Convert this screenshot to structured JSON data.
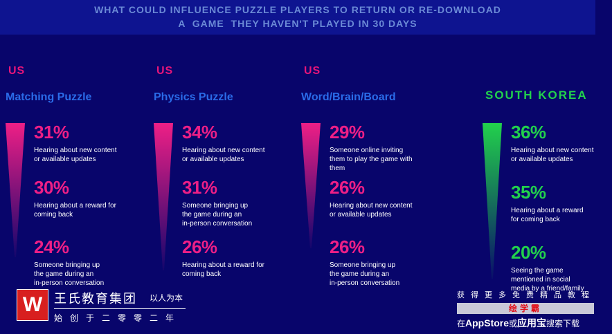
{
  "header": {
    "line1": "WHAT COULD INFLUENCE PUZZLE PLAYERS TO RETURN OR RE-DOWNLOAD",
    "line2": "A  GAME  THEY HAVEN'T PLAYED IN 30 DAYS"
  },
  "colors": {
    "accent_pink": "#ee1f86",
    "accent_green": "#22d14c",
    "genre_blue": "#2a6be8",
    "background": "#08056b"
  },
  "chart_data": [
    {
      "type": "bar",
      "region": "US",
      "genre": "Matching Puzzle",
      "categories": [
        "Hearing about new content or available updates",
        "Hearing about a reward for coming back",
        "Someone bringing up the game during an in-person conversation"
      ],
      "values": [
        31,
        30,
        24
      ],
      "labels": [
        "31%",
        "30%",
        "24%"
      ]
    },
    {
      "type": "bar",
      "region": "US",
      "genre": "Physics Puzzle",
      "categories": [
        "Hearing about new content or available updates",
        "Someone bringing up the game during an in-person conversation",
        "Hearing about a reward for coming back"
      ],
      "values": [
        34,
        31,
        26
      ],
      "labels": [
        "34%",
        "31%",
        "26%"
      ]
    },
    {
      "type": "bar",
      "region": "US",
      "genre": "Word/Brain/Board",
      "categories": [
        "Someone online inviting them to play the game with them",
        "Hearing about new content or available updates",
        "Someone bringing up the game during an in-person conversation"
      ],
      "values": [
        29,
        26,
        26
      ],
      "labels": [
        "29%",
        "26%",
        "26%"
      ]
    },
    {
      "type": "bar",
      "region": "SOUTH KOREA",
      "genre": "",
      "categories": [
        "Hearing about new content or available updates",
        "Hearing about a reward for coming back",
        "Seeing the game mentioned in social media by a friend/family"
      ],
      "values": [
        36,
        35,
        20
      ],
      "labels": [
        "36%",
        "35%",
        "20%"
      ]
    }
  ],
  "columns": [
    {
      "region": "US",
      "genre": "Matching Puzzle",
      "items": [
        {
          "pct": "31%",
          "lines": [
            "Hearing about new content",
            "or available updates"
          ]
        },
        {
          "pct": "30%",
          "lines": [
            "Hearing about a reward for",
            "coming back"
          ]
        },
        {
          "pct": "24%",
          "lines": [
            "Someone bringing up",
            "the game during an",
            "in-person conversation"
          ]
        }
      ]
    },
    {
      "region": "US",
      "genre": "Physics Puzzle",
      "items": [
        {
          "pct": "34%",
          "lines": [
            "Hearing about new content",
            "or available updates"
          ]
        },
        {
          "pct": "31%",
          "lines": [
            "Someone bringing up",
            "the game during an",
            "in-person conversation"
          ]
        },
        {
          "pct": "26%",
          "lines": [
            "Hearing about a reward for",
            "coming back"
          ]
        }
      ]
    },
    {
      "region": "US",
      "genre": "Word/Brain/Board",
      "items": [
        {
          "pct": "29%",
          "lines": [
            "Someone online inviting",
            "them to play the game with",
            "them"
          ]
        },
        {
          "pct": "26%",
          "lines": [
            "Hearing about new content",
            "or available updates"
          ]
        },
        {
          "pct": "26%",
          "lines": [
            "Someone bringing up",
            "the game during an",
            "in-person conversation"
          ]
        }
      ]
    },
    {
      "region": "SOUTH KOREA",
      "genre": "",
      "items": [
        {
          "pct": "36%",
          "lines": [
            "Hearing about new content",
            "or available updates"
          ]
        },
        {
          "pct": "35%",
          "lines": [
            "Hearing about a reward",
            "for coming back"
          ]
        },
        {
          "pct": "20%",
          "lines": [
            "Seeing the game",
            "mentioned in social",
            "media by a friend/family"
          ]
        }
      ]
    }
  ],
  "watermark_left": {
    "logo_char": "W",
    "name": "王氏教育集团",
    "motto": "以人为本",
    "since": "始创于二零零二年"
  },
  "watermark_right": {
    "line1": "获得更多免费精品教程",
    "brand": "绘学霸",
    "line3_pre": "在",
    "line3_app": "AppStore",
    "line3_mid": "或",
    "line3_store": "应用宝",
    "line3_post": "搜索下载"
  }
}
